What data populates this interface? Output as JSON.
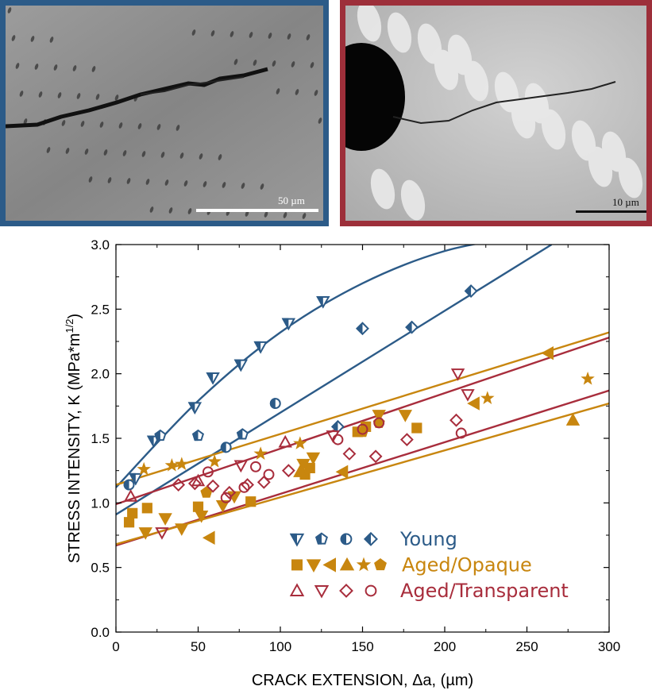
{
  "micrographs": {
    "left": {
      "scale_label": "50 µm",
      "frame_color": "#2c5b88"
    },
    "right": {
      "scale_label": "10 µm",
      "frame_color": "#9d2f3a"
    }
  },
  "chart_data": {
    "type": "scatter",
    "xlabel": "CRACK EXTENSION, Δa, (µm)",
    "ylabel": "STRESS INTENSITY, K (MPa*m",
    "ylabel_sup": "1/2",
    "ylabel_tail": ")",
    "xlim": [
      0,
      300
    ],
    "ylim": [
      0,
      3.0
    ],
    "xticks": [
      0,
      50,
      100,
      150,
      200,
      250,
      300
    ],
    "yticks": [
      0.0,
      0.5,
      1.0,
      1.5,
      2.0,
      2.5,
      3.0
    ],
    "xtick_labels": [
      "0",
      "50",
      "100",
      "150",
      "200",
      "250",
      "300"
    ],
    "ytick_labels": [
      "0.0",
      "0.5",
      "1.0",
      "1.5",
      "2.0",
      "2.5",
      "3.0"
    ],
    "legend": [
      {
        "label": "Young",
        "color": "#2c5b88",
        "markers": [
          "tri-down-half",
          "pentagon-half",
          "circle-half",
          "diamond-half"
        ]
      },
      {
        "label": "Aged/Opaque",
        "color": "#c8860f",
        "markers": [
          "square",
          "tri-down",
          "tri-left",
          "tri-up",
          "star",
          "pentagon"
        ]
      },
      {
        "label": "Aged/Transparent",
        "color": "#a82d3c",
        "markers": [
          "tri-up-open",
          "tri-down-open",
          "diamond-open",
          "circle-open"
        ]
      }
    ],
    "fit_lines": [
      {
        "group": "Young",
        "color": "#2c5b88",
        "type": "curve",
        "x": [
          0,
          50,
          100,
          150,
          200,
          250
        ],
        "y": [
          1.12,
          1.79,
          2.32,
          2.7,
          2.95,
          3.07
        ]
      },
      {
        "group": "Young",
        "color": "#2c5b88",
        "type": "line",
        "x": [
          0,
          265
        ],
        "y": [
          0.91,
          3.0
        ]
      },
      {
        "group": "Aged/Opaque",
        "color": "#c8860f",
        "type": "line",
        "x": [
          0,
          300
        ],
        "y": [
          1.14,
          2.32
        ]
      },
      {
        "group": "Aged/Transparent",
        "color": "#a82d3c",
        "type": "line",
        "x": [
          0,
          300
        ],
        "y": [
          0.99,
          2.28
        ]
      },
      {
        "group": "Aged/Transparent",
        "color": "#a82d3c",
        "type": "line",
        "x": [
          0,
          300
        ],
        "y": [
          0.67,
          1.87
        ]
      },
      {
        "group": "Aged/Opaque",
        "color": "#c8860f",
        "type": "line",
        "x": [
          0,
          300
        ],
        "y": [
          0.68,
          1.77
        ]
      }
    ],
    "series": [
      {
        "name": "Young",
        "color": "#2c5b88",
        "marker": "tri-down-half",
        "points": [
          [
            12,
            1.19
          ],
          [
            23,
            1.48
          ],
          [
            48,
            1.74
          ],
          [
            59,
            1.97
          ],
          [
            76,
            2.07
          ],
          [
            88,
            2.21
          ],
          [
            105,
            2.39
          ],
          [
            126,
            2.56
          ]
        ]
      },
      {
        "name": "Young",
        "color": "#2c5b88",
        "marker": "pentagon-half",
        "points": [
          [
            27,
            1.52
          ],
          [
            50,
            1.52
          ],
          [
            77,
            1.53
          ]
        ]
      },
      {
        "name": "Young",
        "color": "#2c5b88",
        "marker": "circle-half",
        "points": [
          [
            8,
            1.14
          ],
          [
            67,
            1.43
          ],
          [
            97,
            1.77
          ]
        ]
      },
      {
        "name": "Young",
        "color": "#2c5b88",
        "marker": "diamond-half",
        "points": [
          [
            135,
            1.59
          ],
          [
            150,
            2.35
          ],
          [
            180,
            2.36
          ],
          [
            216,
            2.64
          ]
        ]
      },
      {
        "name": "Aged/Opaque",
        "color": "#c8860f",
        "marker": "square",
        "points": [
          [
            8,
            0.85
          ],
          [
            10,
            0.92
          ],
          [
            19,
            0.96
          ],
          [
            50,
            0.97
          ],
          [
            82,
            1.01
          ],
          [
            115,
            1.22
          ],
          [
            118,
            1.27
          ],
          [
            147,
            1.55
          ],
          [
            152,
            1.59
          ],
          [
            183,
            1.58
          ]
        ]
      },
      {
        "name": "Aged/Opaque",
        "color": "#c8860f",
        "marker": "tri-down",
        "points": [
          [
            18,
            0.77
          ],
          [
            30,
            0.88
          ],
          [
            40,
            0.8
          ],
          [
            52,
            0.9
          ],
          [
            65,
            0.98
          ],
          [
            72,
            1.05
          ],
          [
            114,
            1.3
          ],
          [
            120,
            1.35
          ],
          [
            160,
            1.68
          ],
          [
            176,
            1.68
          ]
        ]
      },
      {
        "name": "Aged/Opaque",
        "color": "#c8860f",
        "marker": "tri-left",
        "points": [
          [
            57,
            0.73
          ],
          [
            138,
            1.24
          ],
          [
            218,
            1.77
          ],
          [
            263,
            2.16
          ]
        ]
      },
      {
        "name": "Aged/Opaque",
        "color": "#c8860f",
        "marker": "tri-up",
        "points": [
          [
            112,
            1.24
          ],
          [
            278,
            1.64
          ]
        ]
      },
      {
        "name": "Aged/Opaque",
        "color": "#c8860f",
        "marker": "star",
        "points": [
          [
            17,
            1.26
          ],
          [
            34,
            1.29
          ],
          [
            40,
            1.3
          ],
          [
            60,
            1.32
          ],
          [
            88,
            1.38
          ],
          [
            112,
            1.46
          ],
          [
            226,
            1.81
          ],
          [
            287,
            1.96
          ]
        ]
      },
      {
        "name": "Aged/Opaque",
        "color": "#c8860f",
        "marker": "pentagon",
        "points": [
          [
            55,
            1.08
          ],
          [
            150,
            1.55
          ],
          [
            160,
            1.62
          ]
        ]
      },
      {
        "name": "Aged/Transparent",
        "color": "#a82d3c",
        "marker": "tri-up-open",
        "points": [
          [
            9,
            1.05
          ],
          [
            50,
            1.17
          ],
          [
            103,
            1.47
          ]
        ]
      },
      {
        "name": "Aged/Transparent",
        "color": "#a82d3c",
        "marker": "tri-down-open",
        "points": [
          [
            28,
            0.77
          ],
          [
            76,
            1.29
          ],
          [
            132,
            1.52
          ],
          [
            208,
            2.0
          ],
          [
            214,
            1.84
          ]
        ]
      },
      {
        "name": "Aged/Transparent",
        "color": "#a82d3c",
        "marker": "diamond-open",
        "points": [
          [
            38,
            1.14
          ],
          [
            48,
            1.15
          ],
          [
            59,
            1.13
          ],
          [
            69,
            1.08
          ],
          [
            80,
            1.14
          ],
          [
            90,
            1.16
          ],
          [
            105,
            1.25
          ],
          [
            142,
            1.38
          ],
          [
            158,
            1.36
          ],
          [
            177,
            1.49
          ],
          [
            207,
            1.64
          ]
        ]
      },
      {
        "name": "Aged/Transparent",
        "color": "#a82d3c",
        "marker": "circle-open",
        "points": [
          [
            56,
            1.24
          ],
          [
            67,
            1.04
          ],
          [
            78,
            1.12
          ],
          [
            85,
            1.28
          ],
          [
            93,
            1.22
          ],
          [
            135,
            1.49
          ],
          [
            150,
            1.57
          ],
          [
            160,
            1.62
          ],
          [
            210,
            1.54
          ]
        ]
      }
    ]
  }
}
